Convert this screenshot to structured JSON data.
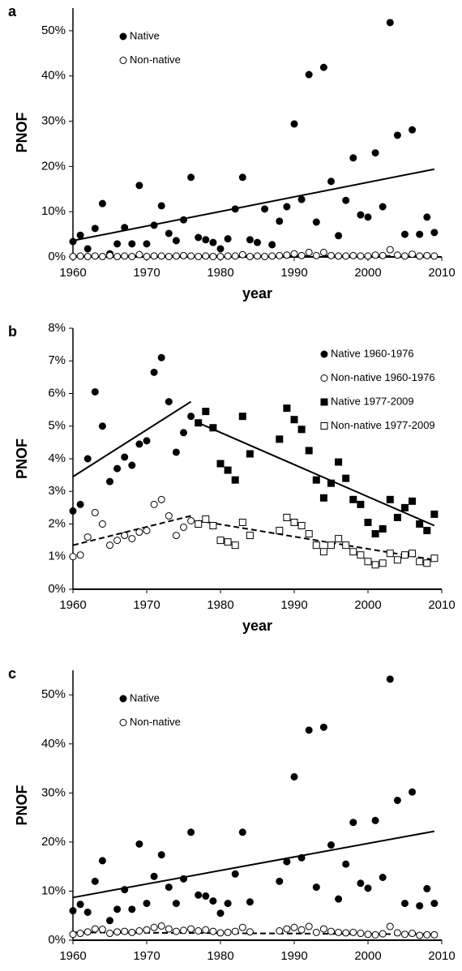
{
  "chart_data": [
    {
      "type": "scatter",
      "panel_label": "a",
      "ylabel": "PNOF",
      "xlabel": "year",
      "xlim": [
        1960,
        2010
      ],
      "ylim": [
        0,
        55
      ],
      "xticks": [
        1960,
        1970,
        1980,
        1990,
        2000,
        2010
      ],
      "yticks": [
        {
          "value": 0,
          "label": "0%"
        },
        {
          "value": 10,
          "label": "10%"
        },
        {
          "value": 20,
          "label": "20%"
        },
        {
          "value": 30,
          "label": "30%"
        },
        {
          "value": 40,
          "label": "40%"
        },
        {
          "value": 50,
          "label": "50%"
        }
      ],
      "legend": "upper left",
      "series": [
        {
          "name": "Native",
          "color": "#000000",
          "marker": "circle",
          "filled": true,
          "x": [
            1960,
            1961,
            1962,
            1963,
            1964,
            1965,
            1966,
            1967,
            1968,
            1969,
            1970,
            1971,
            1972,
            1973,
            1974,
            1975,
            1976,
            1977,
            1978,
            1979,
            1980,
            1981,
            1982,
            1983,
            1984,
            1985,
            1986,
            1987,
            1988,
            1989,
            1990,
            1991,
            1992,
            1993,
            1994,
            1995,
            1996,
            1997,
            1998,
            1999,
            2000,
            2001,
            2002,
            2003,
            2004,
            2005,
            2006,
            2007,
            2008,
            2009
          ],
          "values": [
            3.4,
            4.8,
            1.8,
            6.3,
            11.8,
            0.7,
            2.9,
            6.5,
            2.9,
            15.8,
            2.9,
            7,
            11.3,
            5.2,
            3.6,
            8.2,
            17.6,
            4.3,
            3.8,
            3.2,
            1.8,
            4,
            10.6,
            17.6,
            3.8,
            3.2,
            10.6,
            2.7,
            7.9,
            11.1,
            29.4,
            12.7,
            40.3,
            7.7,
            41.9,
            16.7,
            4.7,
            12.5,
            21.9,
            9.3,
            8.8,
            23,
            11.1,
            51.8,
            26.9,
            5,
            28.1,
            5,
            8.8,
            5.4
          ]
        },
        {
          "name": "Non-native",
          "color": "#000000",
          "marker": "circle",
          "filled": false,
          "x": [
            1960,
            1961,
            1962,
            1963,
            1964,
            1965,
            1966,
            1967,
            1968,
            1969,
            1970,
            1971,
            1972,
            1973,
            1974,
            1975,
            1976,
            1977,
            1978,
            1979,
            1980,
            1981,
            1982,
            1983,
            1984,
            1985,
            1986,
            1987,
            1988,
            1989,
            1990,
            1991,
            1992,
            1993,
            1994,
            1995,
            1996,
            1997,
            1998,
            1999,
            2000,
            2001,
            2002,
            2003,
            2004,
            2005,
            2006,
            2007,
            2008,
            2009
          ],
          "values": [
            0.1,
            0.2,
            0.1,
            0.2,
            0.1,
            0.3,
            0.1,
            0.2,
            0.1,
            0.5,
            0.1,
            0.2,
            0.2,
            0.1,
            0.2,
            0.3,
            0.2,
            0.1,
            0.2,
            0.1,
            0.1,
            0.2,
            0.2,
            0.5,
            0.1,
            0.2,
            0.1,
            0.2,
            0.3,
            0.4,
            0.7,
            0.3,
            1.0,
            0.3,
            1.0,
            0.3,
            0.2,
            0.2,
            0.3,
            0.2,
            0.2,
            0.4,
            0.3,
            1.6,
            0.4,
            0.2,
            0.6,
            0.2,
            0.3,
            0.2
          ]
        }
      ],
      "trend_lines": [
        {
          "x": [
            1960,
            2009
          ],
          "values": [
            3.6,
            19.4
          ],
          "dashed": false,
          "color": "#000000"
        },
        {
          "x": [
            1960,
            2009
          ],
          "values": [
            0.2,
            0.2
          ],
          "dashed": true,
          "color": "#000000"
        }
      ]
    },
    {
      "type": "scatter",
      "panel_label": "b",
      "ylabel": "PNOF",
      "xlabel": "year",
      "xlim": [
        1960,
        2010
      ],
      "ylim": [
        0,
        8
      ],
      "xticks": [
        1960,
        1970,
        1980,
        1990,
        2000,
        2010
      ],
      "yticks": [
        {
          "value": 0,
          "label": "0%"
        },
        {
          "value": 1,
          "label": "1%"
        },
        {
          "value": 2,
          "label": "2%"
        },
        {
          "value": 3,
          "label": "3%"
        },
        {
          "value": 4,
          "label": "4%"
        },
        {
          "value": 5,
          "label": "5%"
        },
        {
          "value": 6,
          "label": "6%"
        },
        {
          "value": 7,
          "label": "7%"
        },
        {
          "value": 8,
          "label": "8%"
        }
      ],
      "legend": "upper right",
      "series": [
        {
          "name": "Native 1960-1976",
          "color": "#000000",
          "marker": "circle",
          "filled": true,
          "x": [
            1960,
            1961,
            1962,
            1963,
            1964,
            1965,
            1966,
            1967,
            1968,
            1969,
            1970,
            1971,
            1972,
            1973,
            1974,
            1975,
            1976
          ],
          "values": [
            2.4,
            2.6,
            4.0,
            6.05,
            5.0,
            3.3,
            3.7,
            4.05,
            3.8,
            4.45,
            4.55,
            6.65,
            7.1,
            5.75,
            4.2,
            4.8,
            5.3
          ]
        },
        {
          "name": "Non-native 1960-1976",
          "color": "#000000",
          "marker": "circle",
          "filled": false,
          "x": [
            1960,
            1961,
            1962,
            1963,
            1964,
            1965,
            1966,
            1967,
            1968,
            1969,
            1970,
            1971,
            1972,
            1973,
            1974,
            1975,
            1976
          ],
          "values": [
            1.0,
            1.05,
            1.6,
            2.35,
            2.0,
            1.35,
            1.5,
            1.65,
            1.55,
            1.75,
            1.8,
            2.6,
            2.75,
            2.25,
            1.65,
            1.9,
            2.1
          ]
        },
        {
          "name": "Native 1977-2009",
          "color": "#000000",
          "marker": "square",
          "filled": true,
          "x": [
            1977,
            1978,
            1979,
            1980,
            1981,
            1982,
            1983,
            1984,
            1988,
            1989,
            1990,
            1991,
            1992,
            1993,
            1994,
            1995,
            1996,
            1997,
            1998,
            1999,
            2000,
            2001,
            2002,
            2003,
            2004,
            2005,
            2006,
            2007,
            2008,
            2009
          ],
          "values": [
            5.1,
            5.45,
            4.95,
            3.85,
            3.65,
            3.35,
            5.3,
            4.15,
            4.6,
            5.55,
            5.2,
            4.9,
            4.25,
            3.35,
            2.8,
            3.25,
            3.9,
            3.4,
            2.75,
            2.6,
            2.05,
            1.7,
            1.85,
            2.75,
            2.2,
            2.5,
            2.7,
            2.0,
            1.8,
            2.3
          ]
        },
        {
          "name": "Non-native 1977-2009",
          "color": "#000000",
          "marker": "square",
          "filled": false,
          "x": [
            1977,
            1978,
            1979,
            1980,
            1981,
            1982,
            1983,
            1984,
            1988,
            1989,
            1990,
            1991,
            1992,
            1993,
            1994,
            1995,
            1996,
            1997,
            1998,
            1999,
            2000,
            2001,
            2002,
            2003,
            2004,
            2005,
            2006,
            2007,
            2008,
            2009
          ],
          "values": [
            2.0,
            2.15,
            1.95,
            1.5,
            1.45,
            1.35,
            2.05,
            1.65,
            1.8,
            2.2,
            2.05,
            1.95,
            1.7,
            1.35,
            1.15,
            1.35,
            1.55,
            1.35,
            1.15,
            1.05,
            0.85,
            0.75,
            0.8,
            1.1,
            0.9,
            1.05,
            1.1,
            0.85,
            0.8,
            0.95
          ]
        }
      ],
      "trend_lines": [
        {
          "x": [
            1960,
            1976
          ],
          "values": [
            3.45,
            5.75
          ],
          "dashed": false,
          "color": "#000000"
        },
        {
          "x": [
            1960,
            1976
          ],
          "values": [
            1.35,
            2.25
          ],
          "dashed": true,
          "color": "#000000"
        },
        {
          "x": [
            1977,
            2009
          ],
          "values": [
            5.1,
            1.95
          ],
          "dashed": false,
          "color": "#000000"
        },
        {
          "x": [
            1977,
            2009
          ],
          "values": [
            2.1,
            0.9
          ],
          "dashed": true,
          "color": "#000000"
        }
      ]
    },
    {
      "type": "scatter",
      "panel_label": "c",
      "ylabel": "PNOF",
      "xlabel": "year",
      "xlim": [
        1960,
        2010
      ],
      "ylim": [
        0,
        55
      ],
      "xticks": [
        1960,
        1970,
        1980,
        1990,
        2000,
        2010
      ],
      "yticks": [
        {
          "value": 0,
          "label": "0%"
        },
        {
          "value": 10,
          "label": "10%"
        },
        {
          "value": 20,
          "label": "20%"
        },
        {
          "value": 30,
          "label": "30%"
        },
        {
          "value": 40,
          "label": "40%"
        },
        {
          "value": 50,
          "label": "50%"
        }
      ],
      "legend": "upper left",
      "series": [
        {
          "name": "Native",
          "color": "#000000",
          "marker": "circle",
          "filled": true,
          "x": [
            1960,
            1961,
            1962,
            1963,
            1964,
            1965,
            1966,
            1967,
            1968,
            1969,
            1970,
            1971,
            1972,
            1973,
            1974,
            1975,
            1976,
            1977,
            1978,
            1979,
            1980,
            1981,
            1982,
            1983,
            1984,
            1988,
            1989,
            1990,
            1991,
            1992,
            1993,
            1994,
            1995,
            1996,
            1997,
            1998,
            1999,
            2000,
            2001,
            2002,
            2003,
            2004,
            2005,
            2006,
            2007,
            2008,
            2009
          ],
          "values": [
            6,
            7.3,
            5.7,
            12,
            16.2,
            4,
            6.3,
            10.3,
            6.3,
            19.6,
            7.5,
            13,
            17.4,
            10.8,
            7.5,
            12.5,
            22,
            9.2,
            9,
            8,
            5.5,
            7.5,
            13.5,
            22,
            7.8,
            12,
            16,
            33.3,
            16.8,
            42.8,
            10.8,
            43.4,
            19.4,
            8.4,
            15.5,
            24,
            11.6,
            10.6,
            24.4,
            12.8,
            53.2,
            28.5,
            7.5,
            30.2,
            7,
            10.5,
            7.5
          ]
        },
        {
          "name": "Non-native",
          "color": "#000000",
          "marker": "circle",
          "filled": false,
          "x": [
            1960,
            1961,
            1962,
            1963,
            1964,
            1965,
            1966,
            1967,
            1968,
            1969,
            1970,
            1971,
            1972,
            1973,
            1974,
            1975,
            1976,
            1977,
            1978,
            1979,
            1980,
            1981,
            1982,
            1983,
            1984,
            1988,
            1989,
            1990,
            1991,
            1992,
            1993,
            1994,
            1995,
            1996,
            1997,
            1998,
            1999,
            2000,
            2001,
            2002,
            2003,
            2004,
            2005,
            2006,
            2007,
            2008,
            2009
          ],
          "values": [
            1.2,
            1.4,
            1.7,
            2.3,
            2.2,
            1.4,
            1.7,
            1.8,
            1.6,
            1.9,
            2.1,
            2.6,
            2.9,
            2.3,
            1.8,
            2.0,
            2.3,
            1.9,
            2.1,
            1.8,
            1.5,
            1.6,
            1.8,
            2.6,
            1.7,
            1.9,
            2.3,
            2.6,
            2.1,
            2.8,
            1.6,
            2.3,
            1.8,
            1.6,
            1.5,
            1.6,
            1.4,
            1.2,
            1.1,
            1.3,
            2.8,
            1.5,
            1.2,
            1.4,
            1.0,
            1.1,
            1.1
          ]
        }
      ],
      "trend_lines": [
        {
          "x": [
            1960,
            2009
          ],
          "values": [
            8.7,
            22.2
          ],
          "dashed": false,
          "color": "#000000"
        },
        {
          "x": [
            1960,
            2009
          ],
          "values": [
            1.6,
            1.2
          ],
          "dashed": true,
          "color": "#000000"
        }
      ]
    }
  ]
}
